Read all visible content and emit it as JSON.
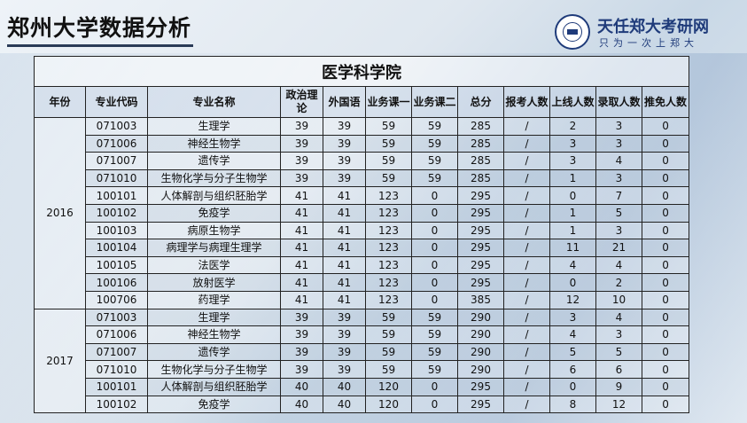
{
  "header": {
    "title": "郑州大学数据分析",
    "logo_name": "天任郑大考研网",
    "logo_slogan": "只为一次上郑大"
  },
  "table": {
    "caption": "医学科学院",
    "columns": [
      "年份",
      "专业代码",
      "专业名称",
      "政治理论",
      "外国语",
      "业务课一",
      "业务课二",
      "总分",
      "报考人数",
      "上线人数",
      "录取人数",
      "推免人数"
    ],
    "groups": [
      {
        "year": "2016",
        "rows": [
          [
            "071003",
            "生理学",
            "39",
            "39",
            "59",
            "59",
            "285",
            "/",
            "2",
            "3",
            "0"
          ],
          [
            "071006",
            "神经生物学",
            "39",
            "39",
            "59",
            "59",
            "285",
            "/",
            "3",
            "3",
            "0"
          ],
          [
            "071007",
            "遗传学",
            "39",
            "39",
            "59",
            "59",
            "285",
            "/",
            "3",
            "4",
            "0"
          ],
          [
            "071010",
            "生物化学与分子生物学",
            "39",
            "39",
            "59",
            "59",
            "285",
            "/",
            "1",
            "3",
            "0"
          ],
          [
            "100101",
            "人体解剖与组织胚胎学",
            "41",
            "41",
            "123",
            "0",
            "295",
            "/",
            "0",
            "7",
            "0"
          ],
          [
            "100102",
            "免疫学",
            "41",
            "41",
            "123",
            "0",
            "295",
            "/",
            "1",
            "5",
            "0"
          ],
          [
            "100103",
            "病原生物学",
            "41",
            "41",
            "123",
            "0",
            "295",
            "/",
            "1",
            "3",
            "0"
          ],
          [
            "100104",
            "病理学与病理生理学",
            "41",
            "41",
            "123",
            "0",
            "295",
            "/",
            "11",
            "21",
            "0"
          ],
          [
            "100105",
            "法医学",
            "41",
            "41",
            "123",
            "0",
            "295",
            "/",
            "4",
            "4",
            "0"
          ],
          [
            "100106",
            "放射医学",
            "41",
            "41",
            "123",
            "0",
            "295",
            "/",
            "0",
            "2",
            "0"
          ],
          [
            "100706",
            "药理学",
            "41",
            "41",
            "123",
            "0",
            "385",
            "/",
            "12",
            "10",
            "0"
          ]
        ]
      },
      {
        "year": "2017",
        "rows": [
          [
            "071003",
            "生理学",
            "39",
            "39",
            "59",
            "59",
            "290",
            "/",
            "3",
            "4",
            "0"
          ],
          [
            "071006",
            "神经生物学",
            "39",
            "39",
            "59",
            "59",
            "290",
            "/",
            "4",
            "3",
            "0"
          ],
          [
            "071007",
            "遗传学",
            "39",
            "39",
            "59",
            "59",
            "290",
            "/",
            "5",
            "5",
            "0"
          ],
          [
            "071010",
            "生物化学与分子生物学",
            "39",
            "39",
            "59",
            "59",
            "290",
            "/",
            "6",
            "6",
            "0"
          ],
          [
            "100101",
            "人体解剖与组织胚胎学",
            "40",
            "40",
            "120",
            "0",
            "295",
            "/",
            "0",
            "9",
            "0"
          ],
          [
            "100102",
            "免疫学",
            "40",
            "40",
            "120",
            "0",
            "295",
            "/",
            "8",
            "12",
            "0"
          ]
        ]
      }
    ]
  }
}
